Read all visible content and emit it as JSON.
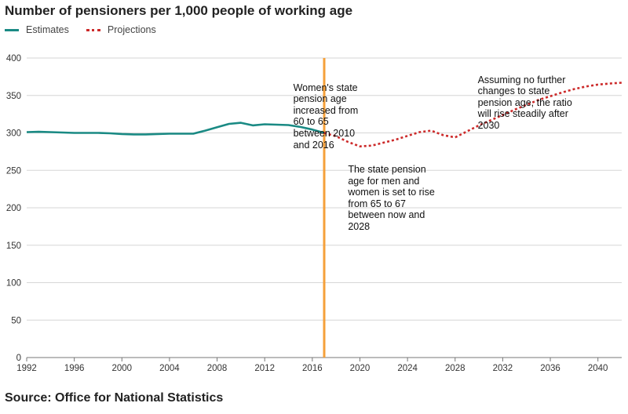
{
  "chart_data": {
    "type": "line",
    "title": "Number of pensioners per 1,000 people of working age",
    "source": "Source: Office for National Statistics",
    "xlabel": "",
    "ylabel": "",
    "xlim": [
      1992,
      2042
    ],
    "ylim": [
      0,
      400
    ],
    "x_ticks": [
      1992,
      1996,
      2000,
      2004,
      2008,
      2012,
      2016,
      2020,
      2024,
      2028,
      2032,
      2036,
      2040
    ],
    "y_ticks": [
      0,
      50,
      100,
      150,
      200,
      250,
      300,
      350,
      400
    ],
    "grid": "horizontal",
    "legend_position": "top-left",
    "series": [
      {
        "name": "Estimates",
        "style": "solid",
        "color": "#1a8a84",
        "x": [
          1992,
          1993,
          1994,
          1995,
          1996,
          1997,
          1998,
          1999,
          2000,
          2001,
          2002,
          2003,
          2004,
          2005,
          2006,
          2007,
          2008,
          2009,
          2010,
          2011,
          2012,
          2013,
          2014,
          2015,
          2016,
          2017
        ],
        "values": [
          301,
          301.5,
          301,
          300.5,
          300,
          300,
          300,
          299.5,
          298.5,
          298,
          298,
          298.5,
          299,
          299,
          299,
          303,
          307.5,
          312,
          313.5,
          310,
          311.5,
          311,
          310.5,
          308,
          304.5,
          300
        ]
      },
      {
        "name": "Projections",
        "style": "dotted",
        "color": "#cc2a2a",
        "x": [
          2017,
          2018,
          2019,
          2020,
          2021,
          2022,
          2023,
          2024,
          2025,
          2026,
          2027,
          2028,
          2029,
          2030,
          2031,
          2032,
          2033,
          2034,
          2035,
          2036,
          2037,
          2038,
          2039,
          2040,
          2041,
          2042
        ],
        "values": [
          300,
          295.5,
          288,
          282,
          283,
          287,
          291,
          296,
          301,
          303,
          297,
          294,
          302,
          310,
          317,
          324,
          331,
          337.5,
          344,
          349,
          354,
          358.5,
          362,
          364.5,
          366,
          367
        ]
      }
    ],
    "reference_line": {
      "x": 2017,
      "color": "#f5a03a"
    },
    "annotations": [
      {
        "id": "women",
        "x": 2014.4,
        "y": 368,
        "lines": [
          "Women's state",
          "pension age",
          "increased from",
          "60 to 65",
          "between 2010",
          "and 2016"
        ]
      },
      {
        "id": "men-women",
        "x": 2019.0,
        "y": 258.6,
        "lines": [
          "The state pension",
          "age for men and",
          "women is set to rise",
          "from 65 to 67",
          "between now and",
          "2028"
        ]
      },
      {
        "id": "assuming",
        "x": 2029.9,
        "y": 378.4,
        "lines": [
          "Assuming no further",
          "changes to state",
          "pension age, the ratio",
          "will rise steadily after",
          "2030"
        ]
      }
    ]
  }
}
